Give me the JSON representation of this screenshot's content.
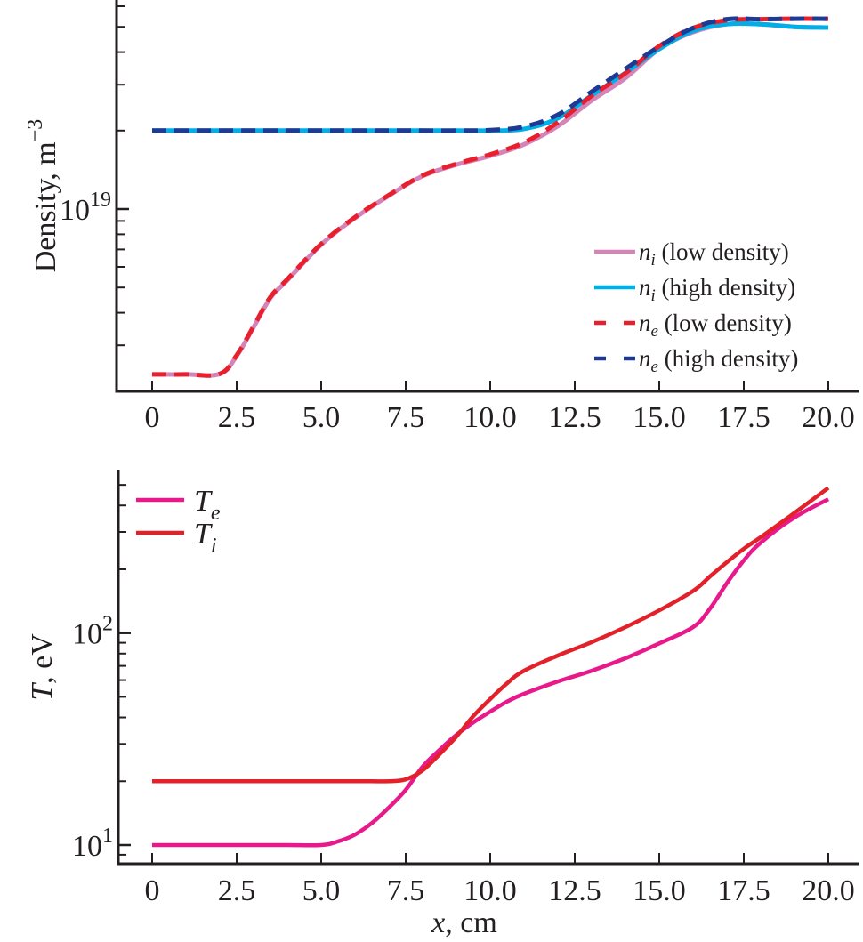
{
  "chart_data": [
    {
      "type": "line",
      "title": "",
      "xlabel": "",
      "ylabel": "Density, m⁻³",
      "ylabel_base": "Density, m",
      "ylabel_sup": "−3",
      "yscale": "log",
      "xlim": [
        0,
        20
      ],
      "ylim": [
        2e+18,
        6.2e+19
      ],
      "grid": false,
      "legend_position": "bottom-right",
      "x_ticks": [
        0,
        2.5,
        5.0,
        7.5,
        10.0,
        12.5,
        15.0,
        17.5,
        20.0
      ],
      "x_tick_labels": [
        "0",
        "2.5",
        "5.0",
        "7.5",
        "10.0",
        "12.5",
        "15.0",
        "17.5",
        "20.0"
      ],
      "y_major_ticks": [
        {
          "value": 1e+19,
          "base": "10",
          "exp": "19"
        }
      ],
      "y_minor_ticks": [
        2e+18,
        3e+18,
        4e+18,
        5e+18,
        6e+18,
        7e+18,
        8e+18,
        9e+18,
        2e+19,
        3e+19,
        4e+19,
        5e+19,
        6e+19
      ],
      "x": [
        0,
        1,
        2,
        2.5,
        3,
        3.5,
        4,
        5,
        6,
        7,
        8,
        9,
        10,
        11,
        12,
        13,
        14,
        15,
        16,
        17,
        18,
        19,
        20
      ],
      "series": [
        {
          "name": "n_i (low density)",
          "symbol": "n",
          "sub": "i",
          "rest": " (low density)",
          "color": "#d584b8",
          "style": "solid",
          "values": [
            2.32e+18,
            2.32e+18,
            2.33e+18,
            2.73e+18,
            3.52e+18,
            4.56e+18,
            5.33e+18,
            7.3e+18,
            9.24e+18,
            1.125e+19,
            1.338e+19,
            1.48e+19,
            1.6e+19,
            1.77e+19,
            2.08e+19,
            2.61e+19,
            3.18e+19,
            4.11e+19,
            4.77e+19,
            5.12e+19,
            5.12e+19,
            5e+19,
            4.97e+19
          ]
        },
        {
          "name": "n_i (high density)",
          "symbol": "n",
          "sub": "i",
          "rest": " (high density)",
          "color": "#00aee8",
          "style": "solid",
          "values": [
            2e+19,
            2e+19,
            2e+19,
            2e+19,
            2e+19,
            2e+19,
            2e+19,
            2e+19,
            2e+19,
            2e+19,
            2e+19,
            2e+19,
            2e+19,
            2.03e+19,
            2.23e+19,
            2.73e+19,
            3.33e+19,
            4.11e+19,
            4.82e+19,
            5.12e+19,
            5.12e+19,
            5e+19,
            4.97e+19
          ]
        },
        {
          "name": "n_e (low density)",
          "symbol": "n",
          "sub": "e",
          "rest": " (low density)",
          "color": "#e8202e",
          "style": "dashed",
          "values": [
            2.32e+18,
            2.32e+18,
            2.33e+18,
            2.75e+18,
            3.55e+18,
            4.6e+18,
            5.38e+18,
            7.35e+18,
            9.3e+18,
            1.13e+19,
            1.345e+19,
            1.49e+19,
            1.62e+19,
            1.8e+19,
            2.15e+19,
            2.72e+19,
            3.32e+19,
            4.22e+19,
            4.95e+19,
            5.3e+19,
            5.35e+19,
            5.37e+19,
            5.37e+19
          ]
        },
        {
          "name": "n_e (high density)",
          "symbol": "n",
          "sub": "e",
          "rest": " (high density)",
          "color": "#1f3a93",
          "style": "dashed",
          "values": [
            2e+19,
            2e+19,
            2e+19,
            2e+19,
            2e+19,
            2e+19,
            2e+19,
            2e+19,
            2e+19,
            2e+19,
            2e+19,
            2e+19,
            2.01e+19,
            2.07e+19,
            2.3e+19,
            2.82e+19,
            3.45e+19,
            4.2e+19,
            4.95e+19,
            5.35e+19,
            5.35e+19,
            5.37e+19,
            5.37e+19
          ]
        }
      ]
    },
    {
      "type": "line",
      "title": "",
      "xlabel": "x, cm",
      "xlabel_var": "x",
      "xlabel_rest": ", cm",
      "ylabel": "T, eV",
      "ylabel_var": "T",
      "ylabel_rest": ", eV",
      "yscale": "log",
      "xlim": [
        0,
        20
      ],
      "ylim": [
        8.2,
        590
      ],
      "grid": false,
      "legend_position": "top-left",
      "x_ticks": [
        0,
        2.5,
        5.0,
        7.5,
        10.0,
        12.5,
        15.0,
        17.5,
        20.0
      ],
      "x_tick_labels": [
        "0",
        "2.5",
        "5.0",
        "7.5",
        "10.0",
        "12.5",
        "15.0",
        "17.5",
        "20.0"
      ],
      "y_major_ticks": [
        {
          "value": 10,
          "base": "10",
          "exp": "1"
        },
        {
          "value": 100,
          "base": "10",
          "exp": "2"
        }
      ],
      "y_minor_ticks": [
        9,
        20,
        30,
        40,
        50,
        60,
        70,
        80,
        90,
        200,
        300,
        400,
        500
      ],
      "x": [
        0,
        1,
        2,
        3,
        4,
        5,
        5.5,
        6,
        6.5,
        7,
        7.5,
        8,
        8.5,
        9,
        9.5,
        10,
        10.5,
        11,
        12,
        13,
        14,
        15,
        16,
        16.5,
        17,
        17.5,
        18,
        19,
        20
      ],
      "series": [
        {
          "name": "T_e",
          "symbol": "T",
          "sub": "e",
          "color": "#e8198a",
          "style": "solid",
          "values": [
            10,
            10,
            10,
            10,
            10,
            10,
            10.4,
            11.2,
            12.7,
            15.0,
            18.2,
            23.4,
            28.1,
            33.1,
            37.9,
            42.6,
            47.5,
            51.7,
            59.1,
            66.4,
            76.1,
            89.4,
            106.7,
            130.5,
            172,
            220,
            267,
            351,
            428
          ]
        },
        {
          "name": "T_i",
          "symbol": "T",
          "sub": "i",
          "color": "#e3212b",
          "style": "solid",
          "values": [
            20,
            20,
            20,
            20,
            20,
            20,
            20,
            20,
            20,
            20,
            20.4,
            22.5,
            26.8,
            32.5,
            40.6,
            48.8,
            58,
            66.4,
            78.3,
            90.6,
            106.7,
            128,
            158,
            185,
            216,
            250,
            283,
            369,
            484
          ]
        }
      ]
    }
  ]
}
